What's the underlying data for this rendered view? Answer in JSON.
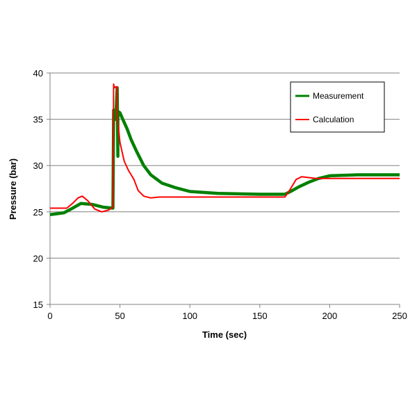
{
  "chart_data": {
    "type": "line",
    "title": "",
    "xlabel": "Time (sec)",
    "ylabel": "Pressure (bar)",
    "xlim": [
      0,
      250
    ],
    "ylim": [
      15,
      40
    ],
    "xticks": [
      0,
      50,
      100,
      150,
      200,
      250
    ],
    "yticks": [
      15,
      20,
      25,
      30,
      35,
      40
    ],
    "grid": "horizontal",
    "legend_position": "top-right",
    "series": [
      {
        "name": "Measurement",
        "color": "#008000",
        "x": [
          0,
          5,
          10,
          15,
          22,
          30,
          38,
          45,
          45.5,
          46,
          47,
          48,
          48.5,
          48.5,
          49,
          50,
          52,
          55,
          58,
          62,
          67,
          72,
          80,
          90,
          100,
          120,
          150,
          168,
          172,
          178,
          185,
          192,
          200,
          220,
          250
        ],
        "y": [
          24.7,
          24.8,
          24.9,
          25.3,
          25.9,
          25.8,
          25.5,
          25.4,
          36.0,
          35.0,
          35.0,
          38.4,
          31.0,
          35.3,
          35.8,
          35.7,
          35.0,
          34.0,
          32.8,
          31.5,
          30.0,
          29.0,
          28.1,
          27.6,
          27.2,
          27.0,
          26.9,
          26.9,
          27.2,
          27.7,
          28.2,
          28.6,
          28.9,
          29.0,
          29.0
        ]
      },
      {
        "name": "Calculation",
        "color": "#ff0000",
        "x": [
          0,
          12,
          16,
          20,
          23,
          27,
          32,
          37,
          42,
          45,
          45.5,
          46,
          47,
          48,
          48.3,
          50,
          53,
          56,
          60,
          63,
          67,
          72,
          78,
          85,
          100,
          150,
          168,
          172,
          176,
          180,
          185,
          190,
          200,
          250
        ],
        "y": [
          25.4,
          25.4,
          25.9,
          26.5,
          26.7,
          26.2,
          25.3,
          25.0,
          25.2,
          25.5,
          38.8,
          38.4,
          38.5,
          38.5,
          35.0,
          32.5,
          30.5,
          29.5,
          28.5,
          27.3,
          26.7,
          26.5,
          26.6,
          26.6,
          26.6,
          26.6,
          26.6,
          27.5,
          28.5,
          28.8,
          28.7,
          28.6,
          28.6,
          28.6
        ]
      }
    ]
  }
}
